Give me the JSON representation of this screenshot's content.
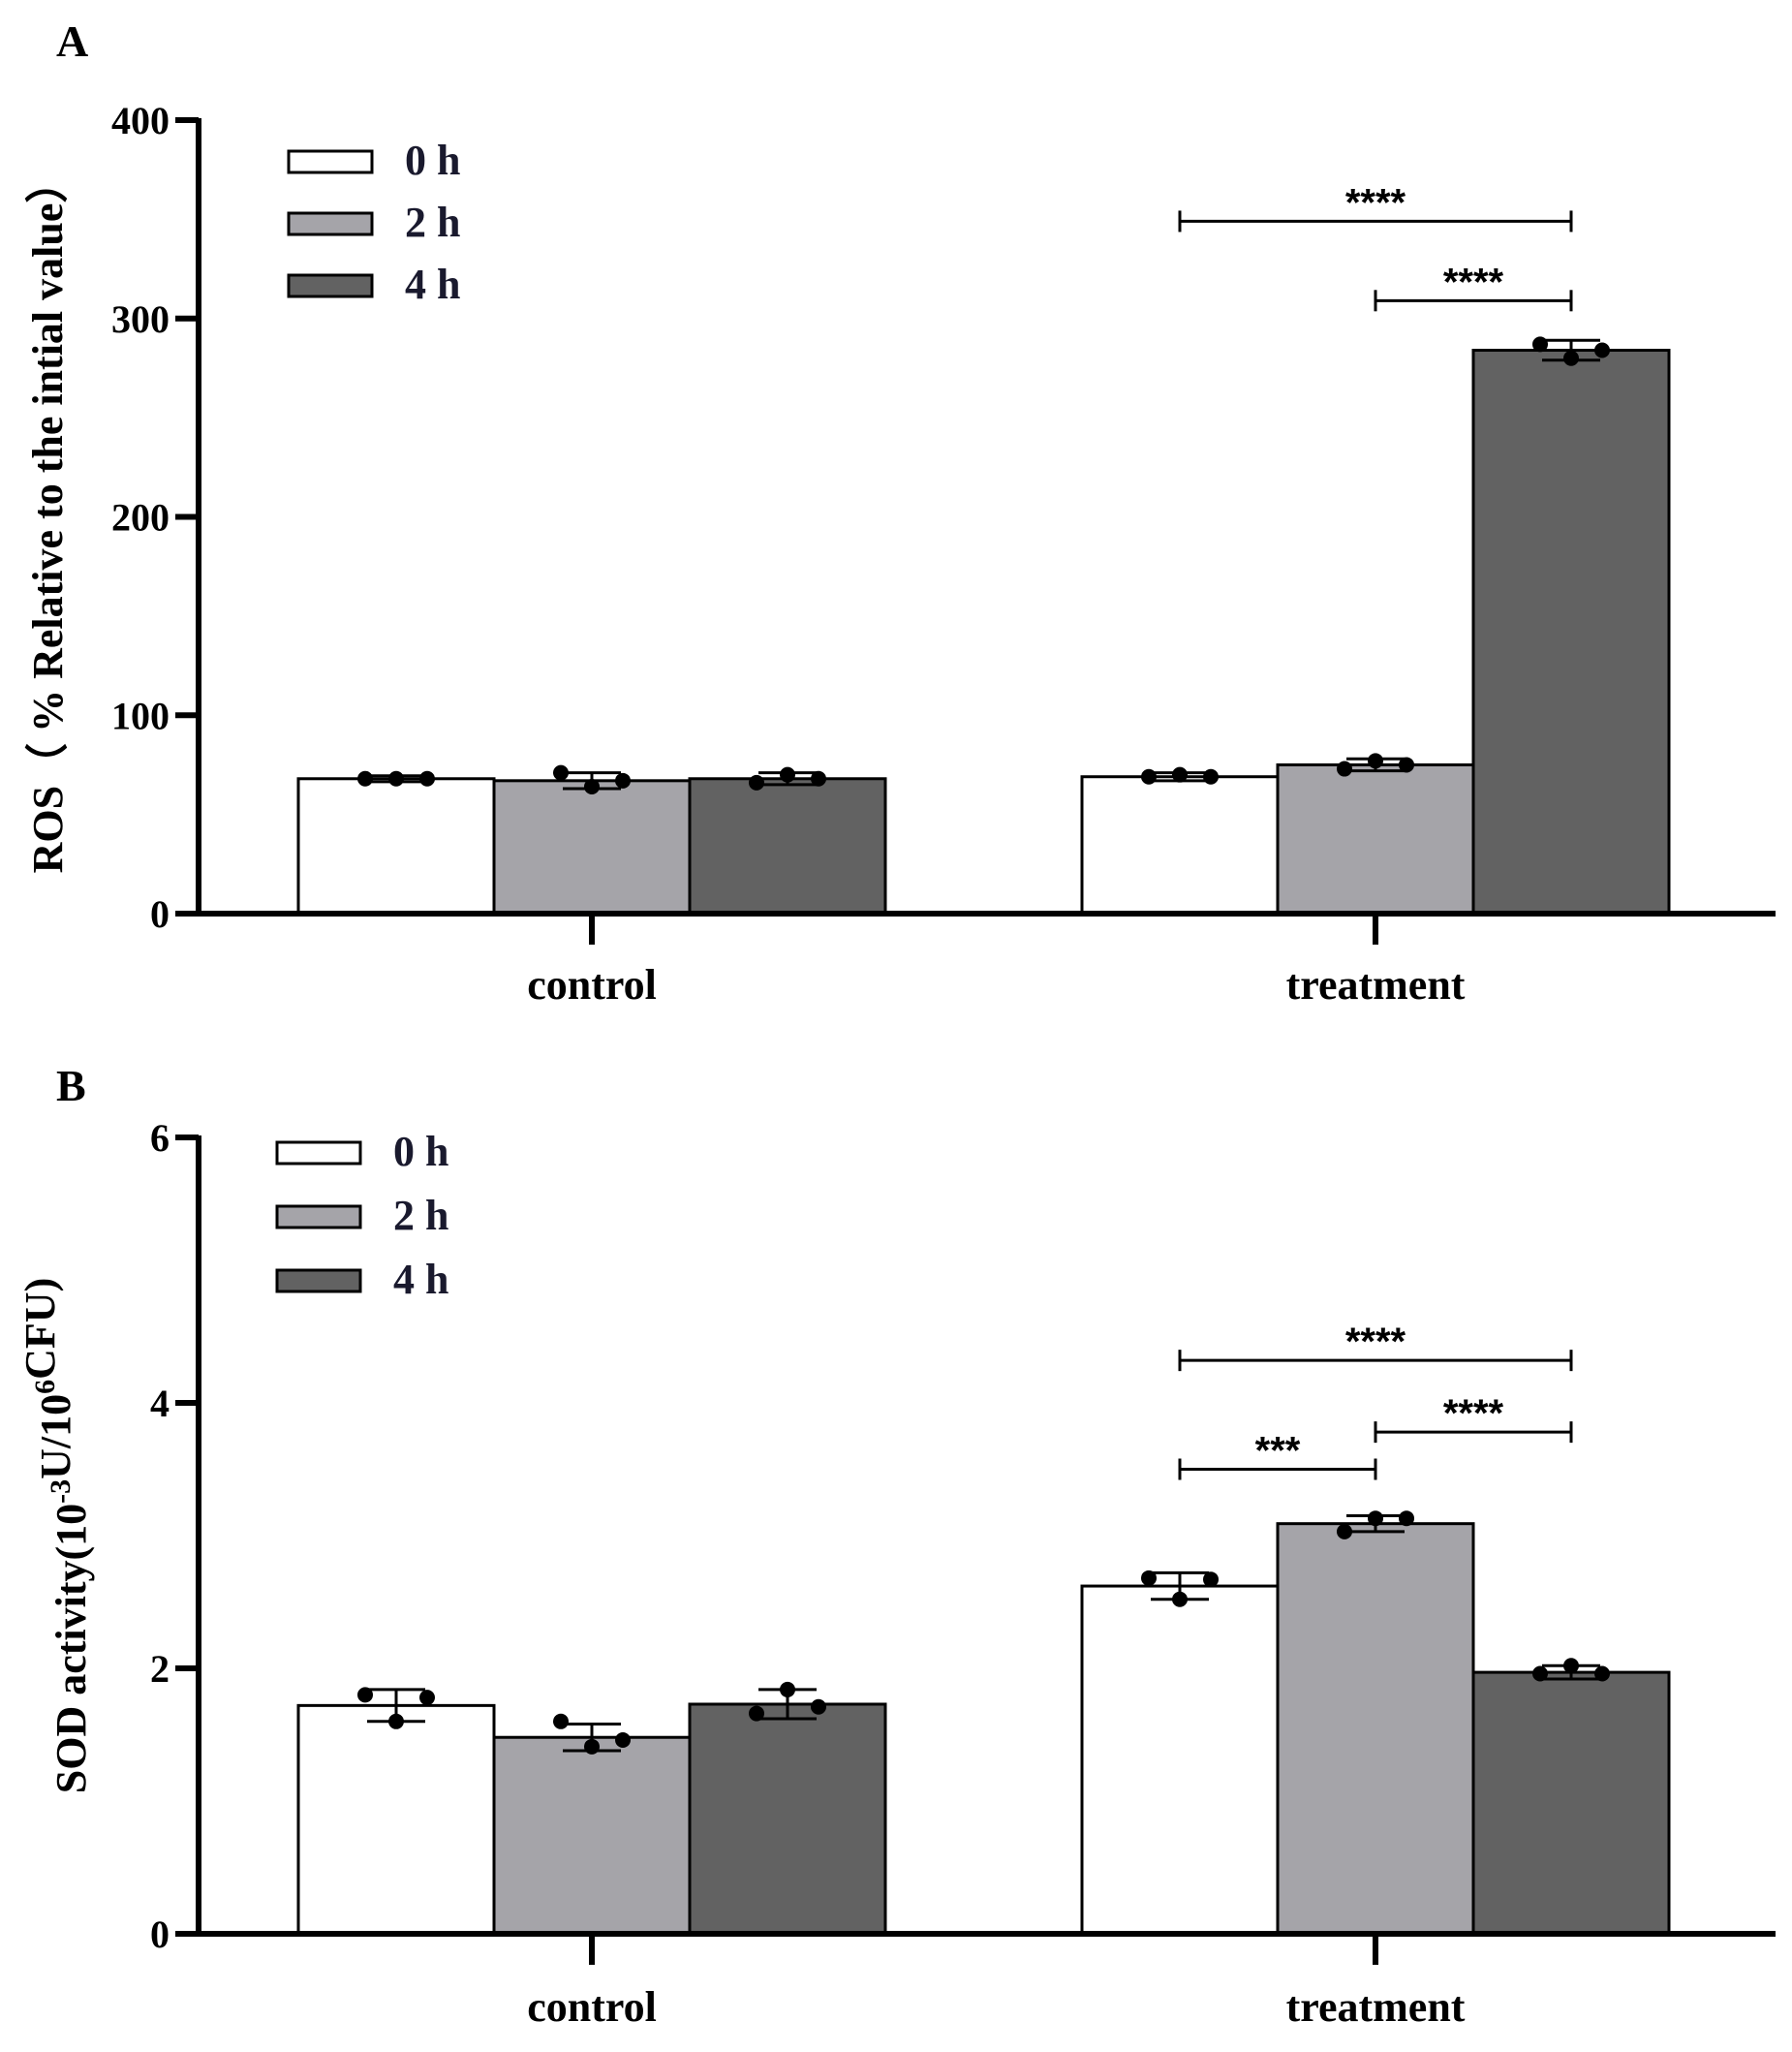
{
  "chart_data": [
    {
      "panel": "A",
      "type": "bar",
      "categories": [
        "control",
        "treatment"
      ],
      "series": [
        {
          "name": "0 h",
          "color": "#ffffff",
          "values": [
            68,
            69
          ],
          "errors": [
            1.5,
            2
          ],
          "points": [
            [
              68,
              68,
              68
            ],
            [
              69,
              70,
              69
            ]
          ]
        },
        {
          "name": "2 h",
          "color": "#a5a4a9",
          "values": [
            67,
            75
          ],
          "errors": [
            4,
            3
          ],
          "points": [
            [
              71,
              64,
              67
            ],
            [
              73,
              77,
              75
            ]
          ]
        },
        {
          "name": "4 h",
          "color": "#626262",
          "values": [
            68,
            284
          ],
          "errors": [
            3,
            5
          ],
          "points": [
            [
              66,
              70,
              68
            ],
            [
              287,
              280,
              284
            ]
          ]
        }
      ],
      "ylabel": "ROS（ % Relative to the intial value）",
      "xlabel": "",
      "ylim": [
        0,
        400
      ],
      "yticks": [
        "0",
        "100",
        "200",
        "300",
        "400"
      ],
      "legend_position": "top-left",
      "significance": [
        {
          "category": "treatment",
          "from": "0 h",
          "to": "4 h",
          "label": "****",
          "y": 349
        },
        {
          "category": "treatment",
          "from": "2 h",
          "to": "4 h",
          "label": "****",
          "y": 309
        }
      ]
    },
    {
      "panel": "B",
      "type": "bar",
      "categories": [
        "control",
        "treatment"
      ],
      "series": [
        {
          "name": "0 h",
          "color": "#ffffff",
          "values": [
            1.72,
            2.62
          ],
          "errors": [
            0.12,
            0.1
          ],
          "points": [
            [
              1.8,
              1.6,
              1.78
            ],
            [
              2.68,
              2.52,
              2.67
            ]
          ]
        },
        {
          "name": "2 h",
          "color": "#a5a4a9",
          "values": [
            1.48,
            3.09
          ],
          "errors": [
            0.1,
            0.06
          ],
          "points": [
            [
              1.6,
              1.41,
              1.46
            ],
            [
              3.03,
              3.13,
              3.13
            ]
          ]
        },
        {
          "name": "4 h",
          "color": "#626262",
          "values": [
            1.73,
            1.97
          ],
          "errors": [
            0.11,
            0.05
          ],
          "points": [
            [
              1.66,
              1.84,
              1.71
            ],
            [
              1.96,
              2.02,
              1.96
            ]
          ]
        }
      ],
      "ylabel_main": "SOD activity(10",
      "ylabel_sup1": "-3",
      "ylabel_mid": "U/10",
      "ylabel_sup2": "6",
      "ylabel_end": "CFU)",
      "xlabel": "",
      "ylim": [
        0,
        6
      ],
      "yticks": [
        "0",
        "2",
        "4",
        "6"
      ],
      "legend_position": "top-left",
      "significance": [
        {
          "category": "treatment",
          "from": "0 h",
          "to": "4 h",
          "label": "****",
          "y": 4.32
        },
        {
          "category": "treatment",
          "from": "2 h",
          "to": "4 h",
          "label": "****",
          "y": 3.78
        },
        {
          "category": "treatment",
          "from": "0 h",
          "to": "2 h",
          "label": "***",
          "y": 3.5
        }
      ]
    }
  ]
}
